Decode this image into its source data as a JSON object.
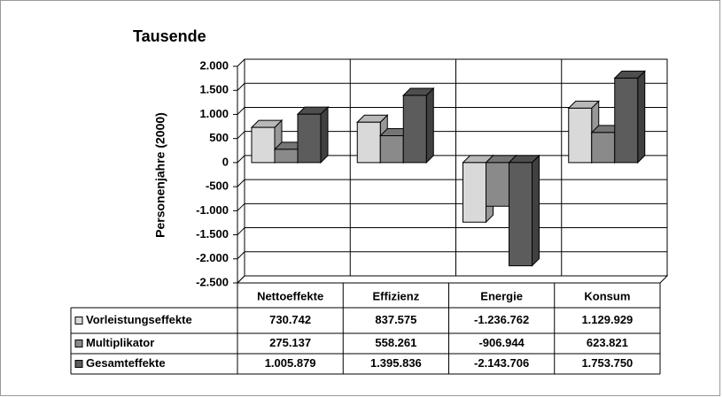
{
  "chart_data": {
    "type": "bar3d",
    "title": "Tausende",
    "y_label": "Personenjahre (2000)",
    "categories": [
      "Nettoeffekte",
      "Effizienz",
      "Energie",
      "Konsum"
    ],
    "series": [
      {
        "name": "Vorleistungseffekte",
        "color": "#d9d9d9",
        "values": [
          730.742,
          837.575,
          -1236.762,
          1129.929
        ],
        "value_labels": [
          "730.742",
          "837.575",
          "-1.236.762",
          "1.129.929"
        ]
      },
      {
        "name": "Multiplikator",
        "color": "#8a8a8a",
        "values": [
          275.137,
          558.261,
          -906.944,
          623.821
        ],
        "value_labels": [
          "275.137",
          "558.261",
          "-906.944",
          "623.821"
        ]
      },
      {
        "name": "Gesamteffekte",
        "color": "#5c5c5c",
        "values": [
          1005.879,
          1395.836,
          -2143.706,
          1753.75
        ],
        "value_labels": [
          "1.005.879",
          "1.395.836",
          "-2.143.706",
          "1.753.750"
        ]
      }
    ],
    "ylim": [
      -2500,
      2000
    ],
    "yticks": [
      {
        "value": -2500,
        "label": "-2.500"
      },
      {
        "value": -2000,
        "label": "-2.000"
      },
      {
        "value": -1500,
        "label": "-1.500"
      },
      {
        "value": -1000,
        "label": "-1.000"
      },
      -500,
      0,
      500,
      {
        "value": 1000,
        "label": "1.000"
      },
      {
        "value": 1500,
        "label": "1.500"
      },
      {
        "value": 2000,
        "label": "2.000"
      }
    ],
    "grid": true,
    "data_table": true
  }
}
